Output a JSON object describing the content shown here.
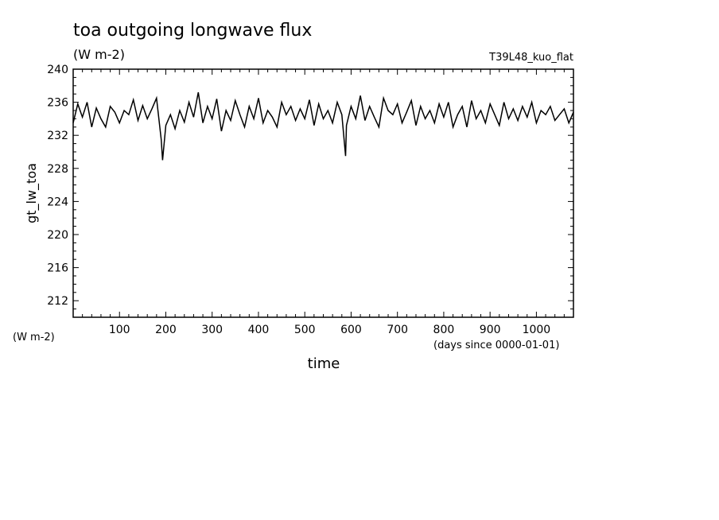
{
  "chart_data": {
    "type": "line",
    "title": "toa outgoing longwave flux",
    "subtitle": "(W m-2)",
    "run_label": "T39L48_kuo_flat",
    "ylabel": "gt_lw_toa",
    "yunit": "(W m-2)",
    "xlabel": "time",
    "xunit": "(days since 0000-01-01)",
    "xlim": [
      0,
      1080
    ],
    "ylim": [
      210,
      240
    ],
    "xticks": [
      100,
      200,
      300,
      400,
      500,
      600,
      700,
      800,
      900,
      1000
    ],
    "yticks": [
      212,
      216,
      220,
      224,
      228,
      232,
      236,
      240
    ],
    "grid": false,
    "series": [
      {
        "x": [
          0,
          10,
          20,
          30,
          40,
          50,
          60,
          70,
          80,
          90,
          100,
          110,
          120,
          130,
          140,
          150,
          160,
          170,
          180,
          190,
          193,
          200,
          210,
          220,
          230,
          240,
          250,
          260,
          270,
          280,
          290,
          300,
          310,
          320,
          330,
          340,
          350,
          360,
          370,
          380,
          390,
          400,
          410,
          420,
          430,
          440,
          450,
          460,
          470,
          480,
          490,
          500,
          510,
          520,
          530,
          540,
          550,
          560,
          570,
          580,
          588,
          590,
          600,
          610,
          620,
          630,
          640,
          650,
          660,
          670,
          680,
          690,
          700,
          710,
          720,
          730,
          740,
          750,
          760,
          770,
          780,
          790,
          800,
          810,
          820,
          830,
          840,
          850,
          860,
          870,
          880,
          890,
          900,
          910,
          920,
          930,
          940,
          950,
          960,
          970,
          980,
          990,
          1000,
          1010,
          1020,
          1030,
          1040,
          1050,
          1060,
          1070,
          1080
        ],
        "y": [
          233.5,
          235.8,
          234.2,
          236.0,
          233.0,
          235.3,
          234.0,
          233.0,
          235.5,
          234.8,
          233.5,
          235.0,
          234.5,
          236.3,
          233.8,
          235.6,
          234.0,
          235.2,
          236.5,
          231.5,
          229.0,
          233.2,
          234.5,
          232.8,
          235.0,
          233.6,
          236.0,
          234.2,
          237.2,
          233.5,
          235.5,
          234.0,
          236.4,
          232.5,
          235.0,
          233.8,
          236.2,
          234.5,
          233.0,
          235.5,
          234.0,
          236.5,
          233.5,
          235.0,
          234.2,
          233.0,
          236.0,
          234.5,
          235.5,
          233.8,
          235.2,
          234.0,
          236.3,
          233.2,
          235.8,
          234.0,
          235.0,
          233.5,
          236.0,
          234.5,
          229.5,
          233.2,
          235.5,
          234.0,
          236.8,
          233.8,
          235.5,
          234.2,
          233.0,
          236.5,
          235.0,
          234.5,
          235.8,
          233.5,
          234.8,
          236.2,
          233.2,
          235.5,
          234.0,
          235.0,
          233.5,
          235.8,
          234.2,
          236.0,
          233.0,
          234.5,
          235.5,
          233.0,
          236.2,
          234.0,
          235.0,
          233.5,
          235.8,
          234.5,
          233.2,
          236.0,
          234.0,
          235.2,
          233.8,
          235.5,
          234.2,
          236.0,
          233.5,
          235.0,
          234.5,
          235.5,
          233.8,
          234.5,
          235.2,
          233.5,
          234.8
        ]
      }
    ]
  }
}
